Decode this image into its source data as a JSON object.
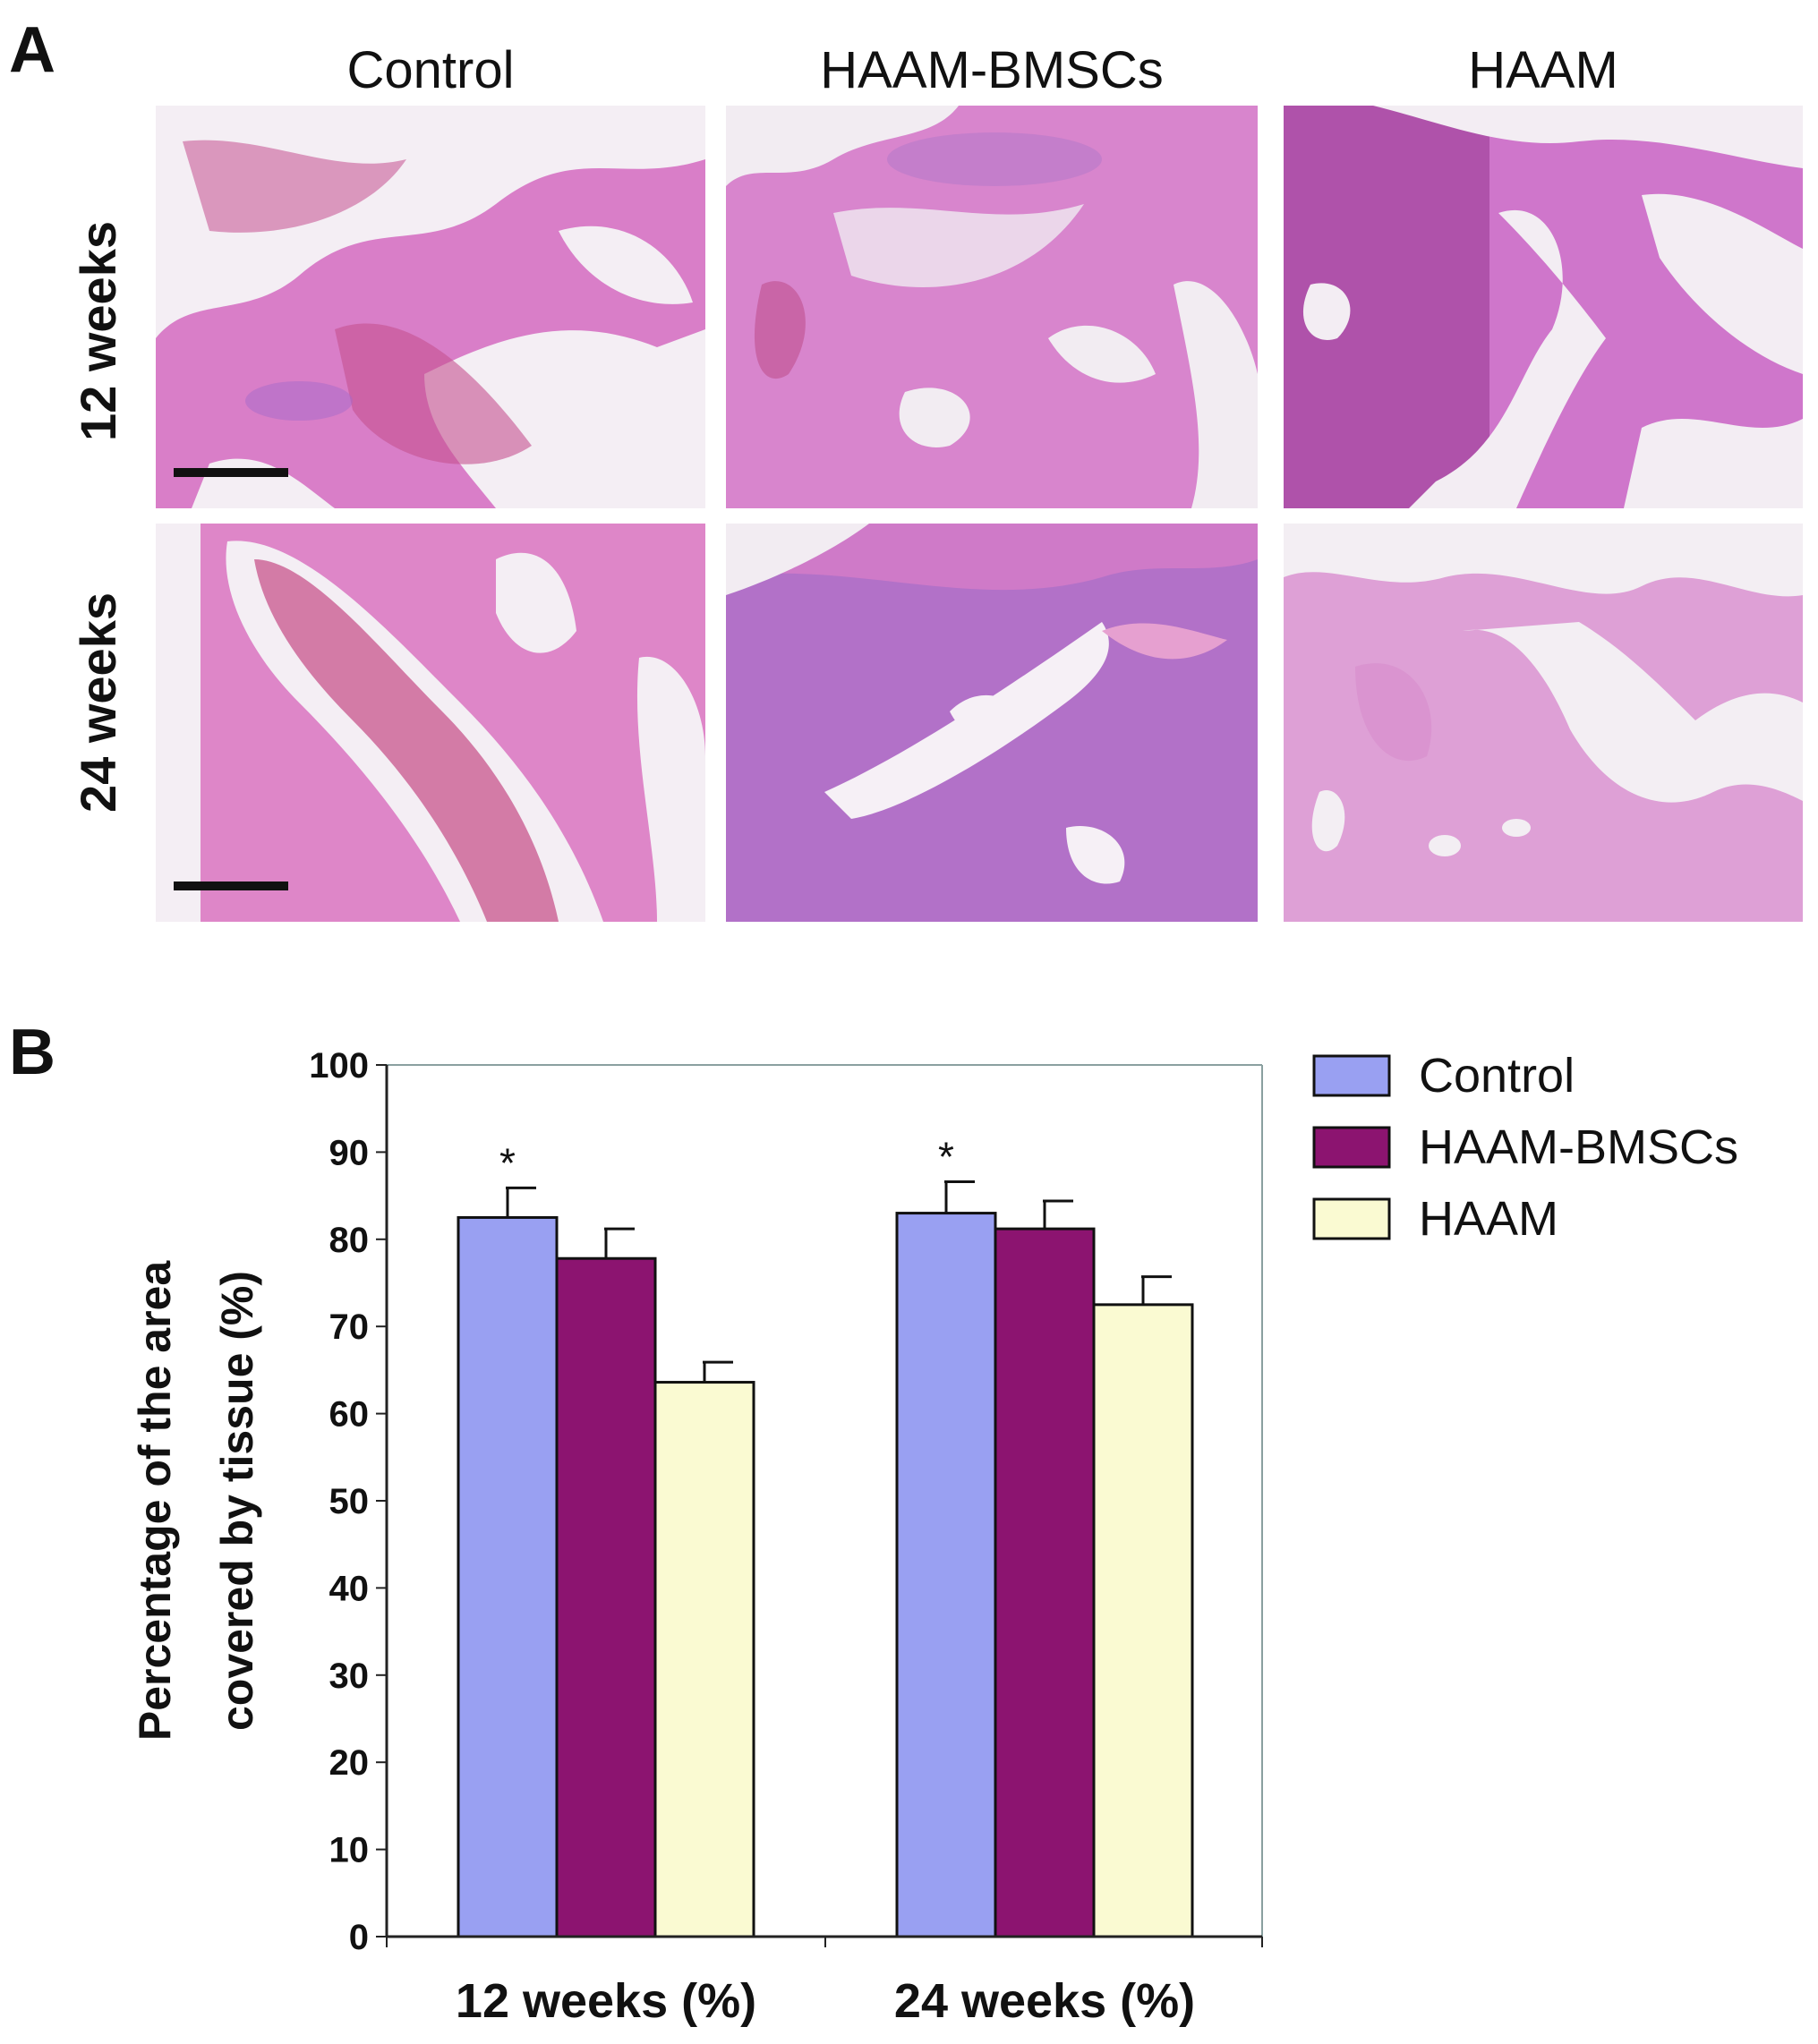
{
  "figure": {
    "panel_a_label": "A",
    "panel_b_label": "B",
    "column_headers": [
      "Control",
      "HAAM-BMSCs",
      "HAAM"
    ],
    "row_labels": [
      "12 weeks",
      "24 weeks"
    ]
  },
  "colors": {
    "control": "#99a0f2",
    "haam_bmscs": "#8c1470",
    "haam": "#fafad2",
    "tissue_pink": "#dc7fcc",
    "tissue_purple": "#9c5fc0"
  },
  "chart_data": {
    "type": "bar",
    "categories": [
      "12 weeks (%)",
      "24 weeks (%)"
    ],
    "series": [
      {
        "name": "Control",
        "values": [
          82.5,
          83.0
        ],
        "errors": [
          3.4,
          3.6
        ]
      },
      {
        "name": "HAAM-BMSCs",
        "values": [
          77.8,
          81.2
        ],
        "errors": [
          3.4,
          3.2
        ]
      },
      {
        "name": "HAAM",
        "values": [
          63.6,
          72.5
        ],
        "errors": [
          2.3,
          3.2
        ]
      }
    ],
    "annotations": [
      {
        "category": "12 weeks (%)",
        "series": "Control",
        "text": "*"
      },
      {
        "category": "24 weeks (%)",
        "series": "Control",
        "text": "*"
      }
    ],
    "ylabel_lines": [
      "Percentage of the area",
      "covered by tissue (%)"
    ],
    "ylim": [
      0,
      100
    ],
    "yticks": [
      0,
      10,
      20,
      30,
      40,
      50,
      60,
      70,
      80,
      90,
      100
    ],
    "grid": false,
    "legend": "top-right, outside plot"
  }
}
